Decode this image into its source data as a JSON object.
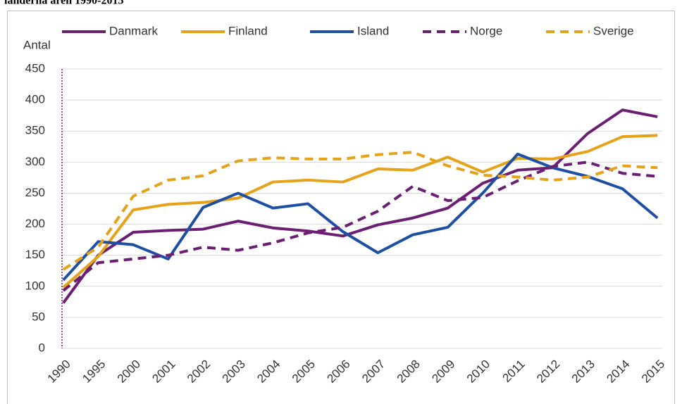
{
  "chart_data": {
    "type": "line",
    "title": "länderna åren 1990-2015",
    "y_label": "Antal",
    "categories": [
      "1990",
      "1995",
      "2000",
      "2001",
      "2002",
      "2003",
      "2004",
      "2005",
      "2006",
      "2007",
      "2008",
      "2009",
      "2010",
      "2011",
      "2012",
      "2013",
      "2014",
      "2015"
    ],
    "series": [
      {
        "name": "Danmark",
        "color": "#6b1f73",
        "dashed": false,
        "values": [
          73,
          150,
          187,
          190,
          192,
          205,
          194,
          189,
          181,
          199,
          210,
          226,
          266,
          287,
          291,
          346,
          384,
          373
        ]
      },
      {
        "name": "Finland",
        "color": "#e6a31a",
        "dashed": false,
        "values": [
          98,
          148,
          223,
          232,
          235,
          242,
          268,
          271,
          268,
          289,
          287,
          308,
          284,
          306,
          305,
          317,
          341,
          343
        ]
      },
      {
        "name": "Island",
        "color": "#1f4fa5",
        "dashed": false,
        "values": [
          110,
          172,
          167,
          144,
          227,
          250,
          226,
          233,
          188,
          154,
          183,
          195,
          250,
          313,
          291,
          277,
          257,
          210
        ]
      },
      {
        "name": "Norge",
        "color": "#6b1f73",
        "dashed": true,
        "values": [
          93,
          138,
          144,
          150,
          163,
          158,
          170,
          186,
          195,
          221,
          261,
          238,
          243,
          270,
          293,
          300,
          282,
          277
        ]
      },
      {
        "name": "Sverige",
        "color": "#e6a31a",
        "dashed": true,
        "values": [
          127,
          163,
          245,
          271,
          278,
          302,
          307,
          305,
          305,
          312,
          316,
          294,
          279,
          276,
          271,
          276,
          294,
          291
        ]
      }
    ],
    "ylim": [
      0,
      450
    ],
    "yticks": [
      0,
      50,
      100,
      150,
      200,
      250,
      300,
      350,
      400,
      450
    ],
    "grid": true,
    "legend": "top"
  }
}
